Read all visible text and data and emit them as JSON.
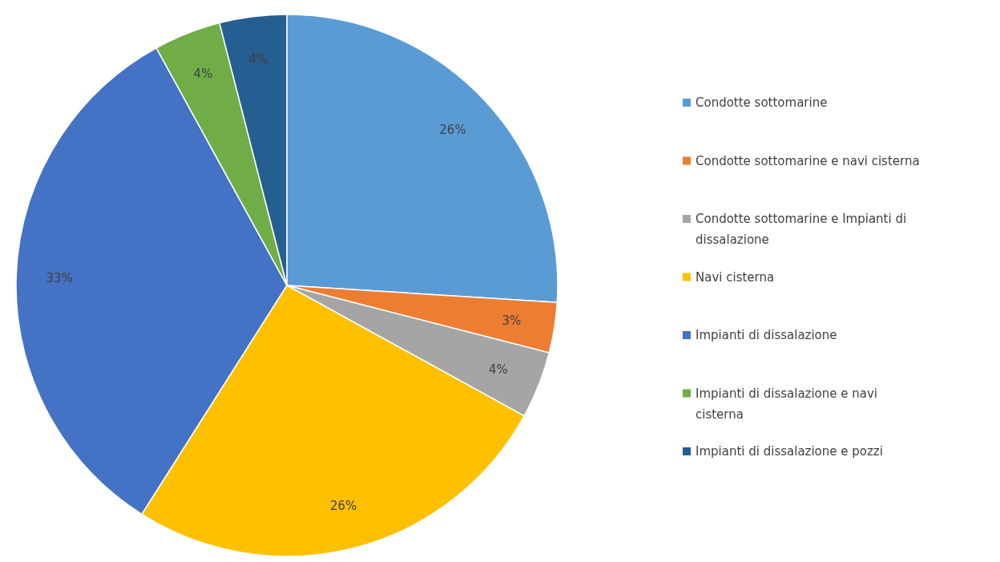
{
  "chart_data": {
    "type": "pie",
    "categories": [
      "Condotte sottomarine",
      "Condotte sottomarine e navi cisterna",
      "Condotte sottomarine e Impianti di dissalazione",
      "Navi cisterna",
      "Impianti di dissalazione",
      "Impianti di dissalazione e navi cisterna",
      "Impianti di dissalazione e pozzi"
    ],
    "values": [
      26,
      3,
      4,
      26,
      33,
      4,
      4
    ],
    "colors": [
      "#5b9bd5",
      "#ed7d31",
      "#a5a5a5",
      "#ffc000",
      "#4472c4",
      "#70ad47",
      "#255e91"
    ],
    "value_labels": [
      "26%",
      "3%",
      "4%",
      "26%",
      "33%",
      "4%",
      "4%"
    ],
    "legend": "right"
  }
}
